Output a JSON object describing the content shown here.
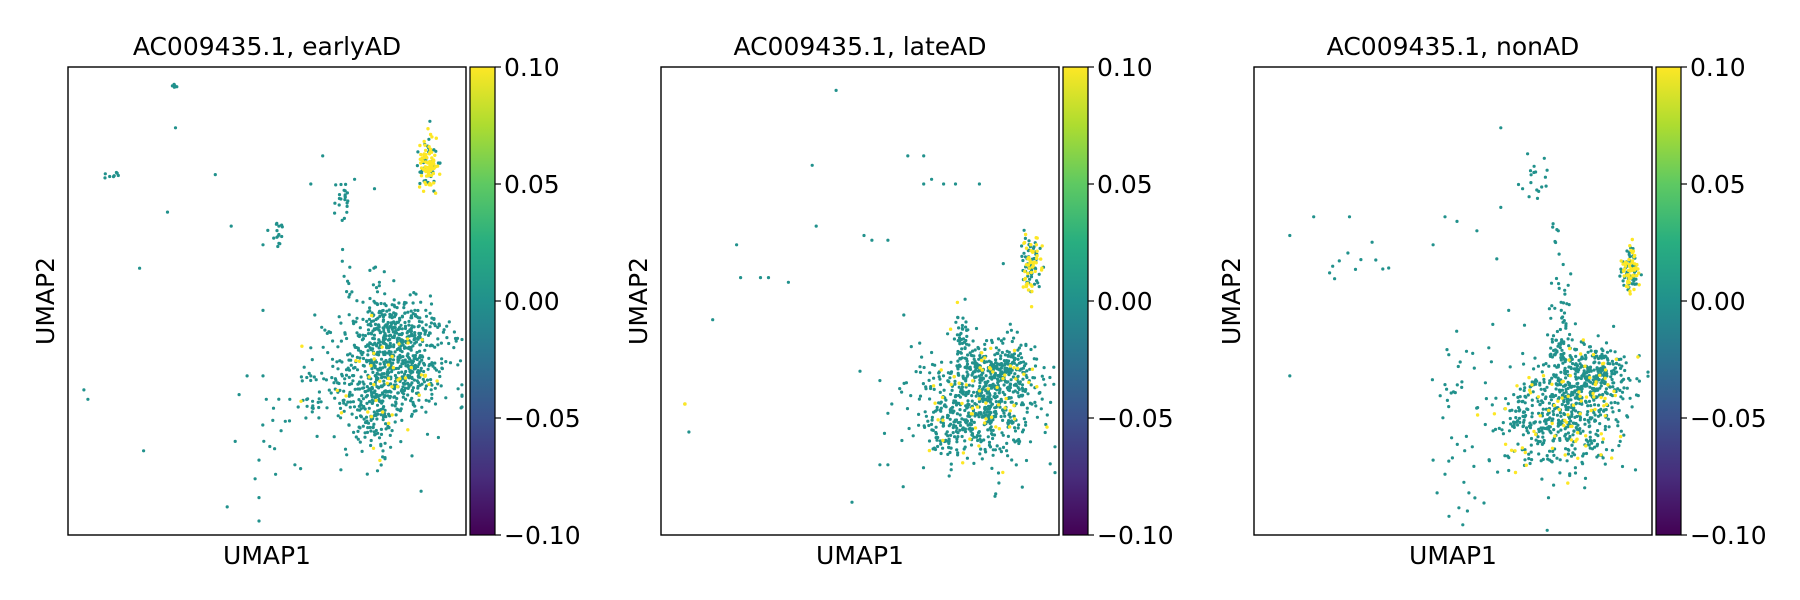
{
  "chart_data": [
    {
      "type": "scatter",
      "title": "AC009435.1, earlyAD",
      "xlabel": "UMAP1",
      "ylabel": "UMAP2",
      "colorbar": {
        "colormap": "viridis",
        "range": [
          -0.1,
          0.1
        ],
        "ticks": [
          "0.10",
          "0.05",
          "0.00",
          "−0.05",
          "−0.10"
        ]
      },
      "clusters": [
        {
          "name": "",
          "x": 0.905,
          "y": 0.79,
          "count": 120,
          "spread": [
            0.012,
            0.03
          ],
          "expressed": 0.6
        },
        {
          "name": "",
          "x": 0.78,
          "y": 0.35,
          "count": 520,
          "spread": [
            0.08,
            0.07
          ],
          "expressed": 0.05
        },
        {
          "name": "",
          "x": 0.85,
          "y": 0.36,
          "count": 180,
          "spread": [
            0.05,
            0.04
          ],
          "expressed": 0.03
        },
        {
          "name": "",
          "x": 0.84,
          "y": 0.44,
          "count": 160,
          "spread": [
            0.045,
            0.03
          ],
          "expressed": 0.02
        },
        {
          "name": "",
          "x": 0.775,
          "y": 0.25,
          "count": 80,
          "spread": [
            0.02,
            0.04
          ],
          "expressed": 0.08
        },
        {
          "name": "",
          "x": 0.69,
          "y": 0.71,
          "count": 22,
          "spread": [
            0.01,
            0.025
          ],
          "expressed": 0.0
        },
        {
          "name": "",
          "x": 0.52,
          "y": 0.645,
          "count": 14,
          "spread": [
            0.015,
            0.02
          ],
          "expressed": 0.1
        },
        {
          "name": "",
          "x": 0.11,
          "y": 0.77,
          "count": 8,
          "spread": [
            0.008,
            0.004
          ],
          "expressed": 0.0
        },
        {
          "name": "",
          "x": 0.27,
          "y": 0.96,
          "count": 5,
          "spread": [
            0.004,
            0.004
          ],
          "expressed": 0.0
        },
        {
          "name": "",
          "x": 0.7,
          "y": 0.55,
          "count": 8,
          "spread": [
            0.015,
            0.05
          ],
          "expressed": 0.0
        },
        {
          "name": "",
          "x": 0.78,
          "y": 0.46,
          "count": 40,
          "spread": [
            0.02,
            0.06
          ],
          "expressed": 0.0
        },
        {
          "name": "",
          "x": 0.62,
          "y": 0.28,
          "count": 25,
          "spread": [
            0.06,
            0.015
          ],
          "expressed": 0.0
        },
        {
          "name": "",
          "x": 0.55,
          "y": 0.18,
          "count": 12,
          "spread": [
            0.04,
            0.05
          ],
          "expressed": 0.0
        }
      ],
      "scattered": [
        [
          0.27,
          0.87
        ],
        [
          0.37,
          0.77
        ],
        [
          0.25,
          0.69
        ],
        [
          0.41,
          0.66
        ],
        [
          0.18,
          0.57
        ],
        [
          0.49,
          0.48
        ],
        [
          0.49,
          0.34
        ],
        [
          0.45,
          0.34
        ],
        [
          0.04,
          0.31
        ],
        [
          0.05,
          0.29
        ],
        [
          0.19,
          0.18
        ],
        [
          0.42,
          0.2
        ],
        [
          0.48,
          0.16
        ],
        [
          0.47,
          0.12
        ],
        [
          0.48,
          0.08
        ],
        [
          0.48,
          0.03
        ],
        [
          0.61,
          0.75
        ],
        [
          0.64,
          0.81
        ],
        [
          0.72,
          0.76
        ],
        [
          0.77,
          0.74
        ],
        [
          0.62,
          0.47
        ],
        [
          0.61,
          0.4
        ],
        [
          0.53,
          0.66
        ],
        [
          0.49,
          0.62
        ],
        [
          0.69,
          0.61
        ],
        [
          0.7,
          0.52
        ],
        [
          0.61,
          0.34
        ],
        [
          0.43,
          0.3
        ],
        [
          0.57,
          0.15
        ],
        [
          0.4,
          0.06
        ]
      ]
    },
    {
      "type": "scatter",
      "title": "AC009435.1, lateAD",
      "xlabel": "UMAP1",
      "ylabel": "UMAP2",
      "colorbar": {
        "colormap": "viridis",
        "range": [
          -0.1,
          0.1
        ],
        "ticks": [
          "0.10",
          "0.05",
          "0.00",
          "−0.05",
          "−0.10"
        ]
      },
      "clusters": [
        {
          "name": "",
          "x": 0.93,
          "y": 0.58,
          "count": 110,
          "spread": [
            0.012,
            0.03
          ],
          "expressed": 0.45
        },
        {
          "name": "",
          "x": 0.79,
          "y": 0.27,
          "count": 520,
          "spread": [
            0.08,
            0.06
          ],
          "expressed": 0.06
        },
        {
          "name": "",
          "x": 0.85,
          "y": 0.34,
          "count": 160,
          "spread": [
            0.045,
            0.04
          ],
          "expressed": 0.05
        },
        {
          "name": "",
          "x": 0.85,
          "y": 0.35,
          "count": 140,
          "spread": [
            0.05,
            0.025
          ],
          "expressed": 0.04
        },
        {
          "name": "",
          "x": 0.76,
          "y": 0.38,
          "count": 50,
          "spread": [
            0.012,
            0.05
          ],
          "expressed": 0.0
        },
        {
          "name": "",
          "x": 0.74,
          "y": 0.22,
          "count": 35,
          "spread": [
            0.05,
            0.015
          ],
          "expressed": 0.0
        }
      ],
      "scattered": [
        [
          0.44,
          0.95
        ],
        [
          0.38,
          0.79
        ],
        [
          0.62,
          0.81
        ],
        [
          0.66,
          0.81
        ],
        [
          0.68,
          0.76
        ],
        [
          0.66,
          0.75
        ],
        [
          0.71,
          0.75
        ],
        [
          0.74,
          0.75
        ],
        [
          0.8,
          0.75
        ],
        [
          0.39,
          0.66
        ],
        [
          0.51,
          0.64
        ],
        [
          0.53,
          0.63
        ],
        [
          0.57,
          0.63
        ],
        [
          0.19,
          0.62
        ],
        [
          0.2,
          0.55
        ],
        [
          0.25,
          0.55
        ],
        [
          0.27,
          0.55
        ],
        [
          0.32,
          0.54
        ],
        [
          0.13,
          0.46
        ],
        [
          0.86,
          0.58
        ],
        [
          0.61,
          0.47
        ],
        [
          0.72,
          0.43
        ],
        [
          0.5,
          0.35
        ],
        [
          0.55,
          0.33
        ],
        [
          0.58,
          0.28
        ],
        [
          0.57,
          0.26
        ],
        [
          0.06,
          0.28
        ],
        [
          0.07,
          0.22
        ],
        [
          0.55,
          0.15
        ],
        [
          0.57,
          0.15
        ],
        [
          0.48,
          0.07
        ],
        [
          0.65,
          0.41
        ],
        [
          0.68,
          0.39
        ]
      ],
      "scattered_expressed": [
        [
          0.06,
          0.28
        ]
      ]
    },
    {
      "type": "scatter",
      "title": "AC009435.1, nonAD",
      "xlabel": "UMAP1",
      "ylabel": "UMAP2",
      "colorbar": {
        "colormap": "viridis",
        "range": [
          -0.1,
          0.1
        ],
        "ticks": [
          "0.10",
          "0.05",
          "0.00",
          "−0.05",
          "−0.10"
        ]
      },
      "clusters": [
        {
          "name": "",
          "x": 0.945,
          "y": 0.57,
          "count": 110,
          "spread": [
            0.01,
            0.025
          ],
          "expressed": 0.5
        },
        {
          "name": "",
          "x": 0.78,
          "y": 0.26,
          "count": 520,
          "spread": [
            0.075,
            0.06
          ],
          "expressed": 0.12
        },
        {
          "name": "",
          "x": 0.85,
          "y": 0.33,
          "count": 160,
          "spread": [
            0.045,
            0.035
          ],
          "expressed": 0.1
        },
        {
          "name": "",
          "x": 0.86,
          "y": 0.35,
          "count": 130,
          "spread": [
            0.05,
            0.025
          ],
          "expressed": 0.05
        },
        {
          "name": "",
          "x": 0.77,
          "y": 0.4,
          "count": 70,
          "spread": [
            0.015,
            0.07
          ],
          "expressed": 0.0
        },
        {
          "name": "",
          "x": 0.71,
          "y": 0.23,
          "count": 35,
          "spread": [
            0.05,
            0.015
          ],
          "expressed": 0.0
        },
        {
          "name": "",
          "x": 0.7,
          "y": 0.76,
          "count": 18,
          "spread": [
            0.03,
            0.03
          ],
          "expressed": 0.0
        },
        {
          "name": "",
          "x": 0.49,
          "y": 0.34,
          "count": 22,
          "spread": [
            0.03,
            0.04
          ],
          "expressed": 0.0
        },
        {
          "name": "",
          "x": 0.55,
          "y": 0.14,
          "count": 18,
          "spread": [
            0.04,
            0.06
          ],
          "expressed": 0.0
        },
        {
          "name": "",
          "x": 0.77,
          "y": 0.55,
          "count": 20,
          "spread": [
            0.015,
            0.07
          ],
          "expressed": 0.0
        },
        {
          "name": "",
          "x": 0.27,
          "y": 0.57,
          "count": 10,
          "spread": [
            0.04,
            0.03
          ],
          "expressed": 0.0
        }
      ],
      "scattered": [
        [
          0.62,
          0.87
        ],
        [
          0.15,
          0.68
        ],
        [
          0.24,
          0.68
        ],
        [
          0.48,
          0.68
        ],
        [
          0.51,
          0.67
        ],
        [
          0.56,
          0.65
        ],
        [
          0.45,
          0.62
        ],
        [
          0.61,
          0.59
        ],
        [
          0.09,
          0.64
        ],
        [
          0.19,
          0.56
        ],
        [
          0.64,
          0.48
        ],
        [
          0.6,
          0.45
        ],
        [
          0.59,
          0.4
        ],
        [
          0.09,
          0.34
        ],
        [
          0.45,
          0.16
        ],
        [
          0.48,
          0.13
        ],
        [
          0.49,
          0.04
        ],
        [
          0.46,
          0.09
        ],
        [
          0.62,
          0.7
        ]
      ]
    }
  ]
}
